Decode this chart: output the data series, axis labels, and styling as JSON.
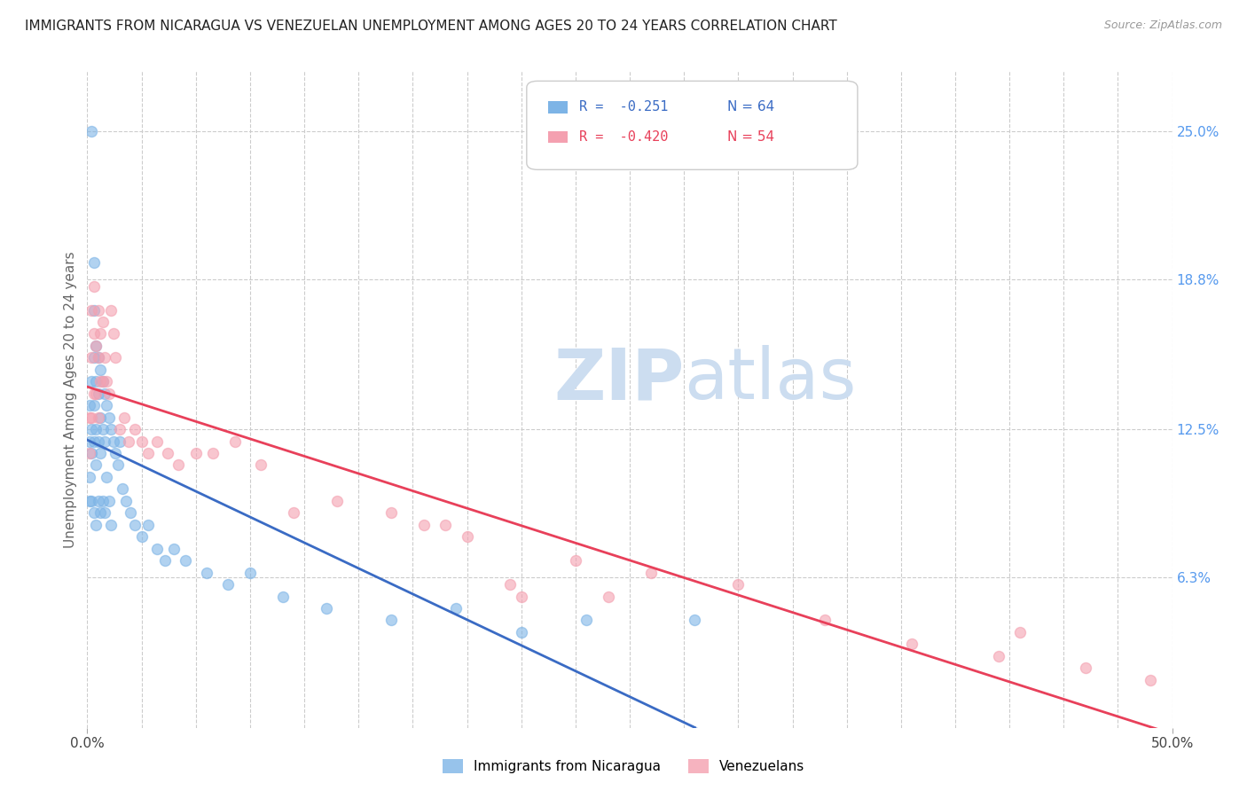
{
  "title": "IMMIGRANTS FROM NICARAGUA VS VENEZUELAN UNEMPLOYMENT AMONG AGES 20 TO 24 YEARS CORRELATION CHART",
  "source": "Source: ZipAtlas.com",
  "ylabel": "Unemployment Among Ages 20 to 24 years",
  "xlim": [
    0.0,
    0.5
  ],
  "ylim": [
    0.0,
    0.275
  ],
  "ytick_labels_right": [
    "25.0%",
    "18.8%",
    "12.5%",
    "6.3%"
  ],
  "yticks_right": [
    0.25,
    0.188,
    0.125,
    0.063
  ],
  "legend_r1": "R =  -0.251",
  "legend_n1": "N = 64",
  "legend_r2": "R =  -0.420",
  "legend_n2": "N = 54",
  "color_nicaragua": "#7db4e6",
  "color_venezuela": "#f4a0b0",
  "color_line_nicaragua": "#3a6bc4",
  "color_line_venezuela": "#e8405a",
  "color_right_axis": "#5599ee",
  "color_title": "#222222",
  "watermark_zip": "ZIP",
  "watermark_atlas": "atlas",
  "watermark_color": "#ccddf0",
  "background_color": "#ffffff",
  "grid_color": "#cccccc",
  "scatter_alpha": 0.6,
  "scatter_size": 75,
  "nicaragua_x": [
    0.001,
    0.001,
    0.001,
    0.001,
    0.002,
    0.002,
    0.002,
    0.002,
    0.002,
    0.003,
    0.003,
    0.003,
    0.003,
    0.003,
    0.003,
    0.004,
    0.004,
    0.004,
    0.004,
    0.004,
    0.005,
    0.005,
    0.005,
    0.005,
    0.006,
    0.006,
    0.006,
    0.006,
    0.007,
    0.007,
    0.007,
    0.008,
    0.008,
    0.008,
    0.009,
    0.009,
    0.01,
    0.01,
    0.011,
    0.011,
    0.012,
    0.013,
    0.014,
    0.015,
    0.016,
    0.018,
    0.02,
    0.022,
    0.025,
    0.028,
    0.032,
    0.036,
    0.04,
    0.045,
    0.055,
    0.065,
    0.075,
    0.09,
    0.11,
    0.14,
    0.17,
    0.2,
    0.23,
    0.28
  ],
  "nicaragua_y": [
    0.135,
    0.12,
    0.105,
    0.095,
    0.25,
    0.145,
    0.125,
    0.115,
    0.095,
    0.195,
    0.175,
    0.155,
    0.135,
    0.12,
    0.09,
    0.16,
    0.145,
    0.125,
    0.11,
    0.085,
    0.155,
    0.14,
    0.12,
    0.095,
    0.15,
    0.13,
    0.115,
    0.09,
    0.145,
    0.125,
    0.095,
    0.14,
    0.12,
    0.09,
    0.135,
    0.105,
    0.13,
    0.095,
    0.125,
    0.085,
    0.12,
    0.115,
    0.11,
    0.12,
    0.1,
    0.095,
    0.09,
    0.085,
    0.08,
    0.085,
    0.075,
    0.07,
    0.075,
    0.07,
    0.065,
    0.06,
    0.065,
    0.055,
    0.05,
    0.045,
    0.05,
    0.04,
    0.045,
    0.045
  ],
  "venezuela_x": [
    0.001,
    0.001,
    0.002,
    0.002,
    0.002,
    0.003,
    0.003,
    0.003,
    0.004,
    0.004,
    0.005,
    0.005,
    0.005,
    0.006,
    0.006,
    0.007,
    0.007,
    0.008,
    0.009,
    0.01,
    0.011,
    0.012,
    0.013,
    0.015,
    0.017,
    0.019,
    0.022,
    0.025,
    0.028,
    0.032,
    0.037,
    0.042,
    0.05,
    0.058,
    0.068,
    0.08,
    0.095,
    0.115,
    0.14,
    0.165,
    0.195,
    0.225,
    0.26,
    0.3,
    0.34,
    0.38,
    0.42,
    0.46,
    0.49,
    0.155,
    0.175,
    0.2,
    0.24,
    0.43
  ],
  "venezuela_y": [
    0.13,
    0.115,
    0.175,
    0.155,
    0.13,
    0.185,
    0.165,
    0.14,
    0.16,
    0.14,
    0.175,
    0.155,
    0.13,
    0.165,
    0.145,
    0.17,
    0.145,
    0.155,
    0.145,
    0.14,
    0.175,
    0.165,
    0.155,
    0.125,
    0.13,
    0.12,
    0.125,
    0.12,
    0.115,
    0.12,
    0.115,
    0.11,
    0.115,
    0.115,
    0.12,
    0.11,
    0.09,
    0.095,
    0.09,
    0.085,
    0.06,
    0.07,
    0.065,
    0.06,
    0.045,
    0.035,
    0.03,
    0.025,
    0.02,
    0.085,
    0.08,
    0.055,
    0.055,
    0.04
  ]
}
